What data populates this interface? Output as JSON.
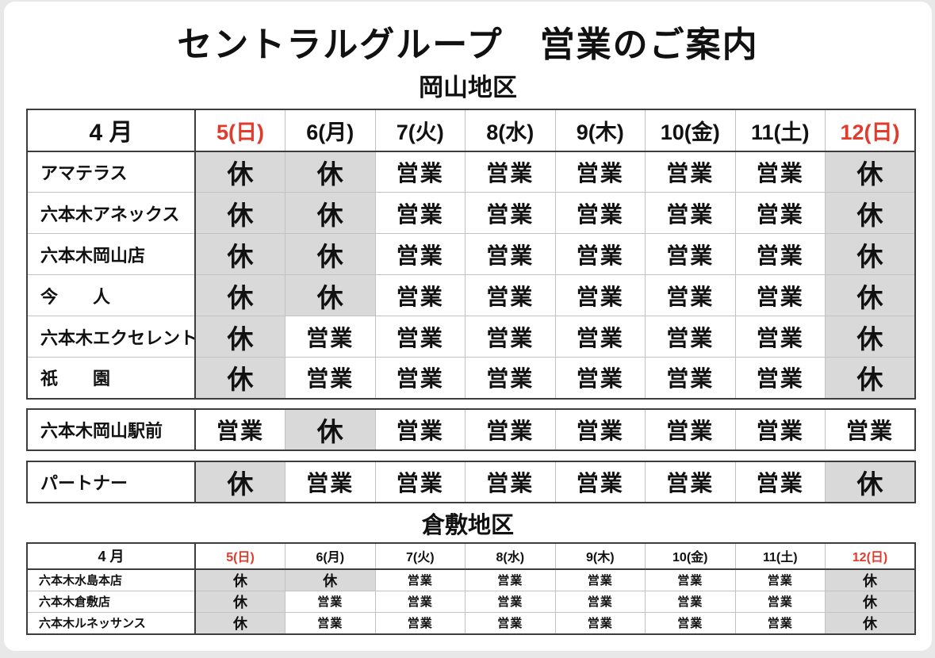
{
  "title": "セントラルグループ　営業のご案内",
  "legend": {
    "closed": "休",
    "open": "営業"
  },
  "colors": {
    "closed_text": "#e23a2c",
    "open_text": "#58b2e8",
    "closed_cell_bg": "#d9d9d9",
    "table_border_dark": "#3d3d3d",
    "table_border_light": "#c2c2c2"
  },
  "sections": {
    "okayama": {
      "heading": "岡山地区",
      "month_label": "4 月",
      "days": [
        {
          "label": "5(日)",
          "holiday": true
        },
        {
          "label": "6(月)",
          "holiday": false
        },
        {
          "label": "7(火)",
          "holiday": false
        },
        {
          "label": "8(水)",
          "holiday": false
        },
        {
          "label": "9(木)",
          "holiday": false
        },
        {
          "label": "10(金)",
          "holiday": false
        },
        {
          "label": "11(土)",
          "holiday": false
        },
        {
          "label": "12(日)",
          "holiday": true
        }
      ],
      "stores": [
        {
          "name": "アマテラス",
          "cells": [
            "closed",
            "closed",
            "open",
            "open",
            "open",
            "open",
            "open",
            "closed"
          ]
        },
        {
          "name": "六本木アネックス",
          "cells": [
            "closed",
            "closed",
            "open",
            "open",
            "open",
            "open",
            "open",
            "closed"
          ]
        },
        {
          "name": "六本木岡山店",
          "cells": [
            "closed",
            "closed",
            "open",
            "open",
            "open",
            "open",
            "open",
            "closed"
          ]
        },
        {
          "name": "今　　人",
          "cells": [
            "closed",
            "closed",
            "open",
            "open",
            "open",
            "open",
            "open",
            "closed"
          ]
        },
        {
          "name": "六本木エクセレント",
          "cells": [
            "closed",
            "open",
            "open",
            "open",
            "open",
            "open",
            "open",
            "closed"
          ]
        },
        {
          "name": "祇　　園",
          "cells": [
            "closed",
            "open",
            "open",
            "open",
            "open",
            "open",
            "open",
            "closed"
          ]
        }
      ],
      "standalone": [
        {
          "name": "六本木岡山駅前",
          "cells": [
            "open",
            "closed",
            "open",
            "open",
            "open",
            "open",
            "open",
            "open"
          ]
        },
        {
          "name": "パートナー",
          "cells": [
            "closed",
            "open",
            "open",
            "open",
            "open",
            "open",
            "open",
            "closed"
          ]
        }
      ]
    },
    "kurashiki": {
      "heading": "倉敷地区",
      "month_label": "4 月",
      "days": [
        {
          "label": "5(日)",
          "holiday": true
        },
        {
          "label": "6(月)",
          "holiday": false
        },
        {
          "label": "7(火)",
          "holiday": false
        },
        {
          "label": "8(水)",
          "holiday": false
        },
        {
          "label": "9(木)",
          "holiday": false
        },
        {
          "label": "10(金)",
          "holiday": false
        },
        {
          "label": "11(土)",
          "holiday": false
        },
        {
          "label": "12(日)",
          "holiday": true
        }
      ],
      "stores": [
        {
          "name": "六本木水島本店",
          "cells": [
            "closed",
            "closed",
            "open",
            "open",
            "open",
            "open",
            "open",
            "closed"
          ]
        },
        {
          "name": "六本木倉敷店",
          "cells": [
            "closed",
            "open",
            "open",
            "open",
            "open",
            "open",
            "open",
            "closed"
          ]
        },
        {
          "name": "六本木ルネッサンス",
          "cells": [
            "closed",
            "open",
            "open",
            "open",
            "open",
            "open",
            "open",
            "closed"
          ]
        }
      ]
    }
  }
}
